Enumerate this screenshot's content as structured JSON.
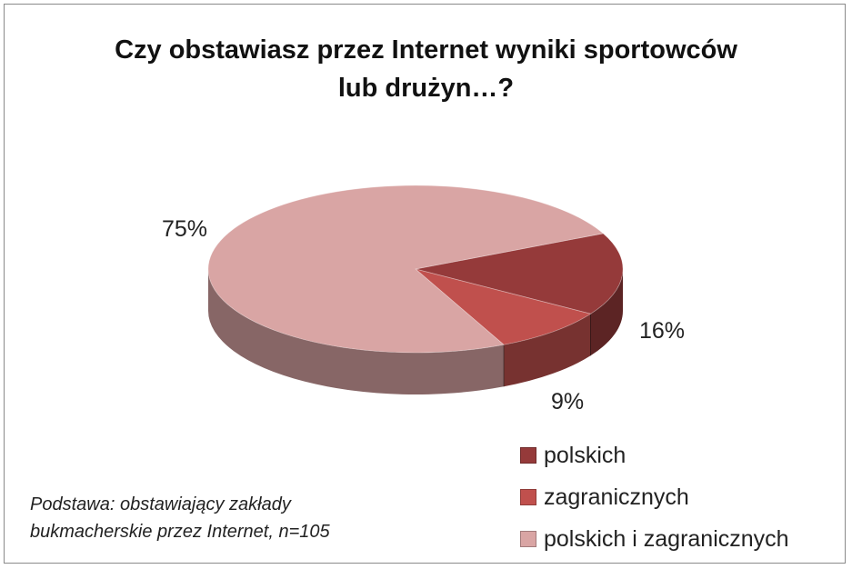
{
  "chart_data": {
    "type": "pie",
    "title_lines": [
      "Czy obstawiasz przez Internet wyniki sportowców",
      "lub drużyn…?"
    ],
    "categories": [
      "polskich",
      "zagranicznych",
      "polskich i zagranicznych"
    ],
    "values": [
      16,
      9,
      75
    ],
    "data_labels": [
      "16%",
      "9%",
      "75%"
    ],
    "colors": [
      "#953a3a",
      "#c0504d",
      "#d9a5a4"
    ],
    "legend_position": "bottom-right",
    "style": "3d-exploded-none"
  },
  "note_lines": [
    "Podstawa: obstawiający zakłady",
    "bukmacherskie przez Internet, n=105"
  ]
}
